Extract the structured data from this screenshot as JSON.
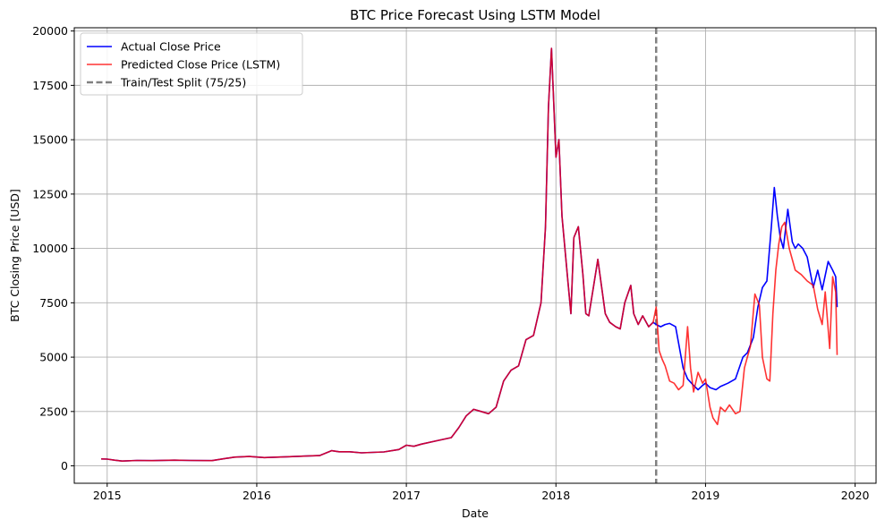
{
  "chart_data": {
    "type": "line",
    "title": "BTC Price Forecast Using LSTM Model",
    "xlabel": "Date",
    "ylabel": "BTC Closing Price [USD]",
    "xlim": [
      2014.78,
      2020.14
    ],
    "ylim": [
      -800,
      20150
    ],
    "xticks": [
      2015,
      2016,
      2017,
      2018,
      2019,
      2020
    ],
    "xtick_labels": [
      "2015",
      "2016",
      "2017",
      "2018",
      "2019",
      "2020"
    ],
    "yticks": [
      0,
      2500,
      5000,
      7500,
      10000,
      12500,
      15000,
      17500,
      20000
    ],
    "ytick_labels": [
      "0",
      "2500",
      "5000",
      "7500",
      "10000",
      "12500",
      "15000",
      "17500",
      "20000"
    ],
    "grid": true,
    "legend_position": "top-left",
    "split": {
      "x": 2018.67,
      "label": "Train/Test Split (75/25)",
      "color": "#808080"
    },
    "series": [
      {
        "name": "Actual Close Price",
        "color": "#0000ff",
        "x": [
          2014.96,
          2015.0,
          2015.05,
          2015.1,
          2015.2,
          2015.3,
          2015.45,
          2015.55,
          2015.7,
          2015.85,
          2015.95,
          2016.05,
          2016.2,
          2016.35,
          2016.42,
          2016.5,
          2016.55,
          2016.62,
          2016.7,
          2016.85,
          2016.95,
          2017.0,
          2017.05,
          2017.1,
          2017.2,
          2017.3,
          2017.35,
          2017.4,
          2017.45,
          2017.5,
          2017.55,
          2017.6,
          2017.65,
          2017.7,
          2017.75,
          2017.8,
          2017.85,
          2017.9,
          2017.93,
          2017.95,
          2017.97,
          2018.0,
          2018.02,
          2018.04,
          2018.06,
          2018.08,
          2018.1,
          2018.12,
          2018.15,
          2018.18,
          2018.2,
          2018.22,
          2018.25,
          2018.28,
          2018.3,
          2018.33,
          2018.36,
          2018.4,
          2018.43,
          2018.46,
          2018.5,
          2018.52,
          2018.55,
          2018.58,
          2018.62,
          2018.65,
          2018.67,
          2018.7,
          2018.73,
          2018.76,
          2018.8,
          2018.85,
          2018.88,
          2018.92,
          2018.95,
          2018.98,
          2019.0,
          2019.03,
          2019.07,
          2019.1,
          2019.15,
          2019.2,
          2019.25,
          2019.28,
          2019.32,
          2019.35,
          2019.38,
          2019.41,
          2019.44,
          2019.46,
          2019.48,
          2019.5,
          2019.52,
          2019.55,
          2019.58,
          2019.6,
          2019.62,
          2019.65,
          2019.68,
          2019.72,
          2019.75,
          2019.78,
          2019.82,
          2019.85,
          2019.87,
          2019.88
        ],
        "y": [
          320,
          310,
          260,
          220,
          250,
          240,
          260,
          250,
          240,
          400,
          430,
          380,
          420,
          460,
          470,
          700,
          650,
          650,
          600,
          640,
          750,
          950,
          900,
          1000,
          1150,
          1300,
          1750,
          2300,
          2600,
          2500,
          2400,
          2700,
          3900,
          4400,
          4600,
          5800,
          6000,
          7500,
          11000,
          16500,
          19200,
          14200,
          15000,
          11500,
          10000,
          8500,
          7000,
          10500,
          11000,
          8800,
          7000,
          6900,
          8200,
          9500,
          8500,
          7000,
          6600,
          6400,
          6300,
          7500,
          8300,
          7000,
          6500,
          6900,
          6400,
          6600,
          6500,
          6400,
          6500,
          6550,
          6400,
          4500,
          4000,
          3700,
          3500,
          3700,
          3800,
          3600,
          3500,
          3650,
          3800,
          4000,
          5000,
          5200,
          5900,
          7300,
          8200,
          8500,
          11000,
          12800,
          11500,
          10500,
          10000,
          11800,
          10300,
          10000,
          10200,
          10000,
          9600,
          8200,
          9000,
          8100,
          9400,
          9000,
          8700,
          7300
        ]
      },
      {
        "name": "Predicted Close Price (LSTM)",
        "color": "#ff0000",
        "x": [
          2014.96,
          2015.0,
          2015.05,
          2015.1,
          2015.2,
          2015.3,
          2015.45,
          2015.55,
          2015.7,
          2015.85,
          2015.95,
          2016.05,
          2016.2,
          2016.35,
          2016.42,
          2016.5,
          2016.55,
          2016.62,
          2016.7,
          2016.85,
          2016.95,
          2017.0,
          2017.05,
          2017.1,
          2017.2,
          2017.3,
          2017.35,
          2017.4,
          2017.45,
          2017.5,
          2017.55,
          2017.6,
          2017.65,
          2017.7,
          2017.75,
          2017.8,
          2017.85,
          2017.9,
          2017.93,
          2017.95,
          2017.97,
          2018.0,
          2018.02,
          2018.04,
          2018.06,
          2018.08,
          2018.1,
          2018.12,
          2018.15,
          2018.18,
          2018.2,
          2018.22,
          2018.25,
          2018.28,
          2018.3,
          2018.33,
          2018.36,
          2018.4,
          2018.43,
          2018.46,
          2018.5,
          2018.52,
          2018.55,
          2018.58,
          2018.62,
          2018.65,
          2018.67,
          2018.69,
          2018.71,
          2018.73,
          2018.76,
          2018.79,
          2018.82,
          2018.85,
          2018.88,
          2018.9,
          2018.92,
          2018.95,
          2018.98,
          2019.0,
          2019.03,
          2019.05,
          2019.08,
          2019.1,
          2019.13,
          2019.16,
          2019.2,
          2019.23,
          2019.26,
          2019.28,
          2019.3,
          2019.33,
          2019.36,
          2019.38,
          2019.41,
          2019.43,
          2019.45,
          2019.47,
          2019.49,
          2019.51,
          2019.53,
          2019.56,
          2019.6,
          2019.64,
          2019.68,
          2019.72,
          2019.75,
          2019.78,
          2019.8,
          2019.83,
          2019.85,
          2019.87,
          2019.88
        ],
        "y": [
          320,
          310,
          260,
          220,
          250,
          240,
          260,
          250,
          240,
          400,
          430,
          380,
          420,
          460,
          470,
          700,
          650,
          650,
          600,
          640,
          750,
          950,
          900,
          1000,
          1150,
          1300,
          1750,
          2300,
          2600,
          2500,
          2400,
          2700,
          3900,
          4400,
          4600,
          5800,
          6000,
          7500,
          11000,
          16500,
          19200,
          14200,
          15000,
          11500,
          10000,
          8500,
          7000,
          10500,
          11000,
          8800,
          7000,
          6900,
          8200,
          9500,
          8500,
          7000,
          6600,
          6400,
          6300,
          7500,
          8300,
          7000,
          6500,
          6900,
          6400,
          6600,
          7300,
          5300,
          4900,
          4600,
          3900,
          3800,
          3500,
          3700,
          6400,
          4500,
          3400,
          4300,
          3800,
          4000,
          2700,
          2200,
          1900,
          2700,
          2500,
          2800,
          2400,
          2500,
          4500,
          5000,
          5500,
          7900,
          7400,
          5000,
          4000,
          3900,
          7000,
          9000,
          10200,
          11000,
          11200,
          10000,
          9000,
          8800,
          8500,
          8300,
          7200,
          6500,
          8000,
          5400,
          8700,
          8000,
          5100
        ]
      }
    ]
  }
}
